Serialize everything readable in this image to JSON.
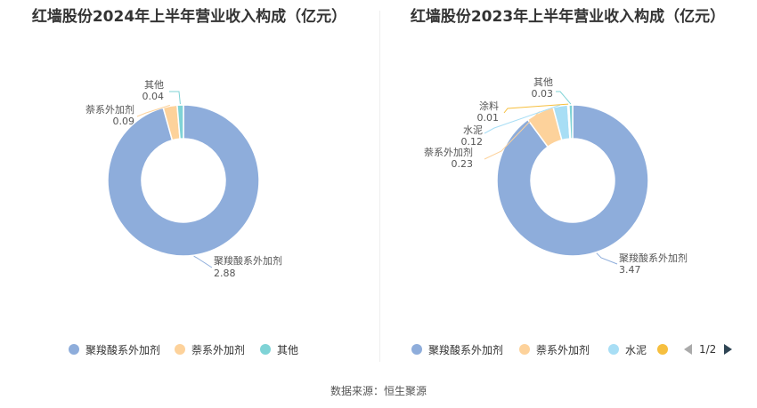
{
  "source": "数据来源：恒生聚源",
  "pager": {
    "text": "1/2"
  },
  "chart_data": [
    {
      "type": "pie",
      "title": "红墙股份2024年上半年营业收入构成（亿元）",
      "categories": [
        "聚羧酸系外加剂",
        "萘系外加剂",
        "其他"
      ],
      "values": [
        2.88,
        0.09,
        0.04
      ],
      "colors": [
        "#8eaddb",
        "#fdd29b",
        "#7fd3d6"
      ],
      "legend": [
        "聚羧酸系外加剂",
        "萘系外加剂",
        "其他"
      ],
      "legend_colors": [
        "#8eaddb",
        "#fdd29b",
        "#7fd3d6"
      ],
      "legend_position": "bottom"
    },
    {
      "type": "pie",
      "title": "红墙股份2023年上半年营业收入构成（亿元）",
      "categories": [
        "聚羧酸系外加剂",
        "萘系外加剂",
        "水泥",
        "涂料",
        "其他"
      ],
      "values": [
        3.47,
        0.23,
        0.12,
        0.01,
        0.03
      ],
      "colors": [
        "#8eaddb",
        "#fdd29b",
        "#a8def5",
        "#f6bf3f",
        "#7fd3d6"
      ],
      "legend": [
        "聚羧酸系外加剂",
        "萘系外加剂",
        "水泥",
        ""
      ],
      "legend_colors": [
        "#8eaddb",
        "#fdd29b",
        "#a8def5",
        "#f6bf3f"
      ],
      "legend_position": "bottom"
    }
  ]
}
